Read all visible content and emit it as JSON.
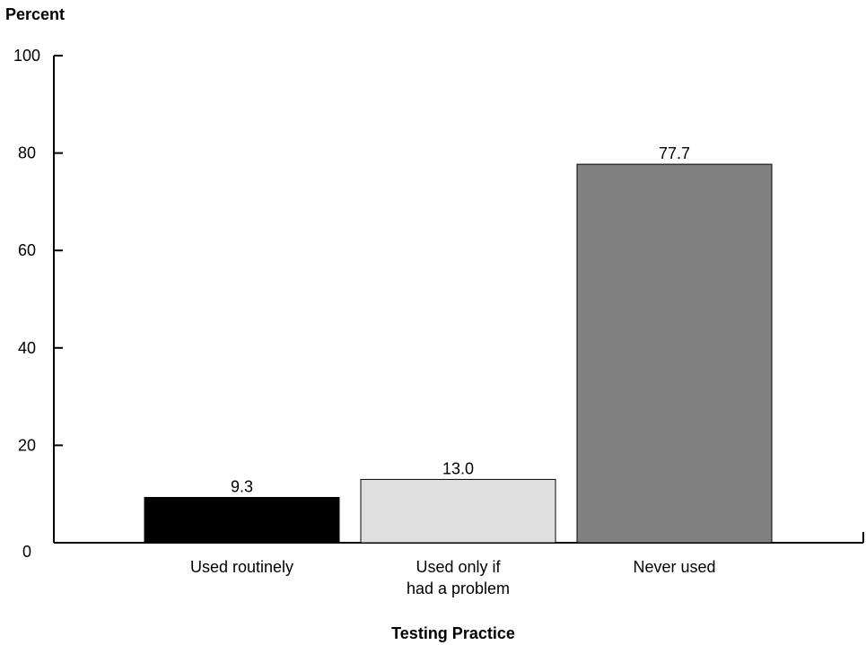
{
  "chart_data": {
    "type": "bar",
    "ylabel": "Percent",
    "xlabel": "Testing Practice",
    "ylim": [
      0,
      100
    ],
    "yticks": [
      0,
      20,
      40,
      60,
      80,
      100
    ],
    "grid": false,
    "categories": [
      [
        "Used routinely"
      ],
      [
        "Used only if",
        "had a problem"
      ],
      [
        "Never used"
      ]
    ],
    "values": [
      9.3,
      13.0,
      77.7
    ],
    "value_labels": [
      "9.3",
      "13.0",
      "77.7"
    ],
    "colors": [
      "#000000",
      "#e0e0e0",
      "#808080"
    ]
  }
}
